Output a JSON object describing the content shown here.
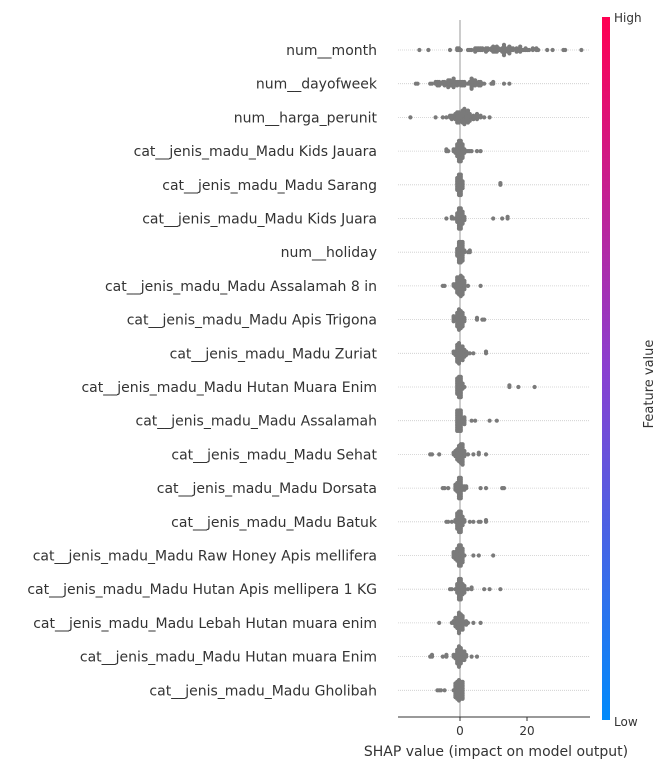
{
  "chart_data": {
    "type": "scatter",
    "subtype": "shap-beeswarm",
    "xlabel": "SHAP value (impact on model output)",
    "x_ticks": [
      0,
      20
    ],
    "xlim": [
      -17,
      37
    ],
    "grid": false,
    "point_color": "#7a7a7a",
    "colorbar": {
      "label": "Feature value",
      "high_label": "High",
      "low_label": "Low",
      "colors": [
        "#008afb",
        "#ff0052"
      ]
    },
    "features": [
      {
        "name": "num__month",
        "min": -12,
        "max": 36,
        "mode": 12,
        "spread": 9,
        "density": 1.0
      },
      {
        "name": "num__dayofweek",
        "min": -13,
        "max": 15,
        "mode": 0,
        "spread": 6,
        "density": 0.9
      },
      {
        "name": "num__harga_perunit",
        "min": -15,
        "max": 9,
        "mode": 1,
        "spread": 3,
        "density": 0.85
      },
      {
        "name": "cat__jenis_madu_Madu Kids Jauara",
        "min": -4,
        "max": 6,
        "mode": 0,
        "spread": 1.2,
        "density": 0.6
      },
      {
        "name": "cat__jenis_madu_Madu Sarang",
        "min": -1,
        "max": 12,
        "mode": 0,
        "spread": 0.6,
        "density": 0.55
      },
      {
        "name": "cat__jenis_madu_Madu Kids Juara",
        "min": -4,
        "max": 14,
        "mode": 0,
        "spread": 0.9,
        "density": 0.5
      },
      {
        "name": "num__holiday",
        "min": -1,
        "max": 3,
        "mode": 0,
        "spread": 0.6,
        "density": 0.55
      },
      {
        "name": "cat__jenis_madu_Madu Assalamah 8 in",
        "min": -5,
        "max": 6,
        "mode": 0,
        "spread": 1.2,
        "density": 0.5
      },
      {
        "name": "cat__jenis_madu_Madu Apis Trigona",
        "min": -2,
        "max": 7,
        "mode": 0,
        "spread": 1.0,
        "density": 0.5
      },
      {
        "name": "cat__jenis_madu_Madu Zuriat",
        "min": -2,
        "max": 8,
        "mode": 0,
        "spread": 1.0,
        "density": 0.5
      },
      {
        "name": "cat__jenis_madu_Madu Hutan Muara Enim",
        "min": -1,
        "max": 22,
        "mode": 0,
        "spread": 0.6,
        "density": 0.5
      },
      {
        "name": "cat__jenis_madu_Madu Assalamah",
        "min": -1,
        "max": 11,
        "mode": 0,
        "spread": 0.8,
        "density": 0.5
      },
      {
        "name": "cat__jenis_madu_Madu Sehat",
        "min": -9,
        "max": 8,
        "mode": 0,
        "spread": 1.2,
        "density": 0.5
      },
      {
        "name": "cat__jenis_madu_Madu Dorsata",
        "min": -5,
        "max": 13,
        "mode": 0,
        "spread": 1.0,
        "density": 0.5
      },
      {
        "name": "cat__jenis_madu_Madu Batuk",
        "min": -4,
        "max": 8,
        "mode": 0,
        "spread": 1.0,
        "density": 0.5
      },
      {
        "name": "cat__jenis_madu_Madu Raw Honey Apis mellifera",
        "min": -2,
        "max": 10,
        "mode": 0,
        "spread": 0.9,
        "density": 0.5
      },
      {
        "name": "cat__jenis_madu_Madu Hutan Apis mellipera 1 KG",
        "min": -3,
        "max": 12,
        "mode": 0,
        "spread": 1.0,
        "density": 0.5
      },
      {
        "name": "cat__jenis_madu_Madu Lebah Hutan muara enim",
        "min": -6,
        "max": 6,
        "mode": 0,
        "spread": 1.2,
        "density": 0.5
      },
      {
        "name": "cat__jenis_madu_Madu Hutan muara Enim",
        "min": -9,
        "max": 5,
        "mode": 0,
        "spread": 1.2,
        "density": 0.5
      },
      {
        "name": "cat__jenis_madu_Madu Gholibah",
        "min": -7,
        "max": 1,
        "mode": 0,
        "spread": 1.0,
        "density": 0.5
      }
    ]
  }
}
